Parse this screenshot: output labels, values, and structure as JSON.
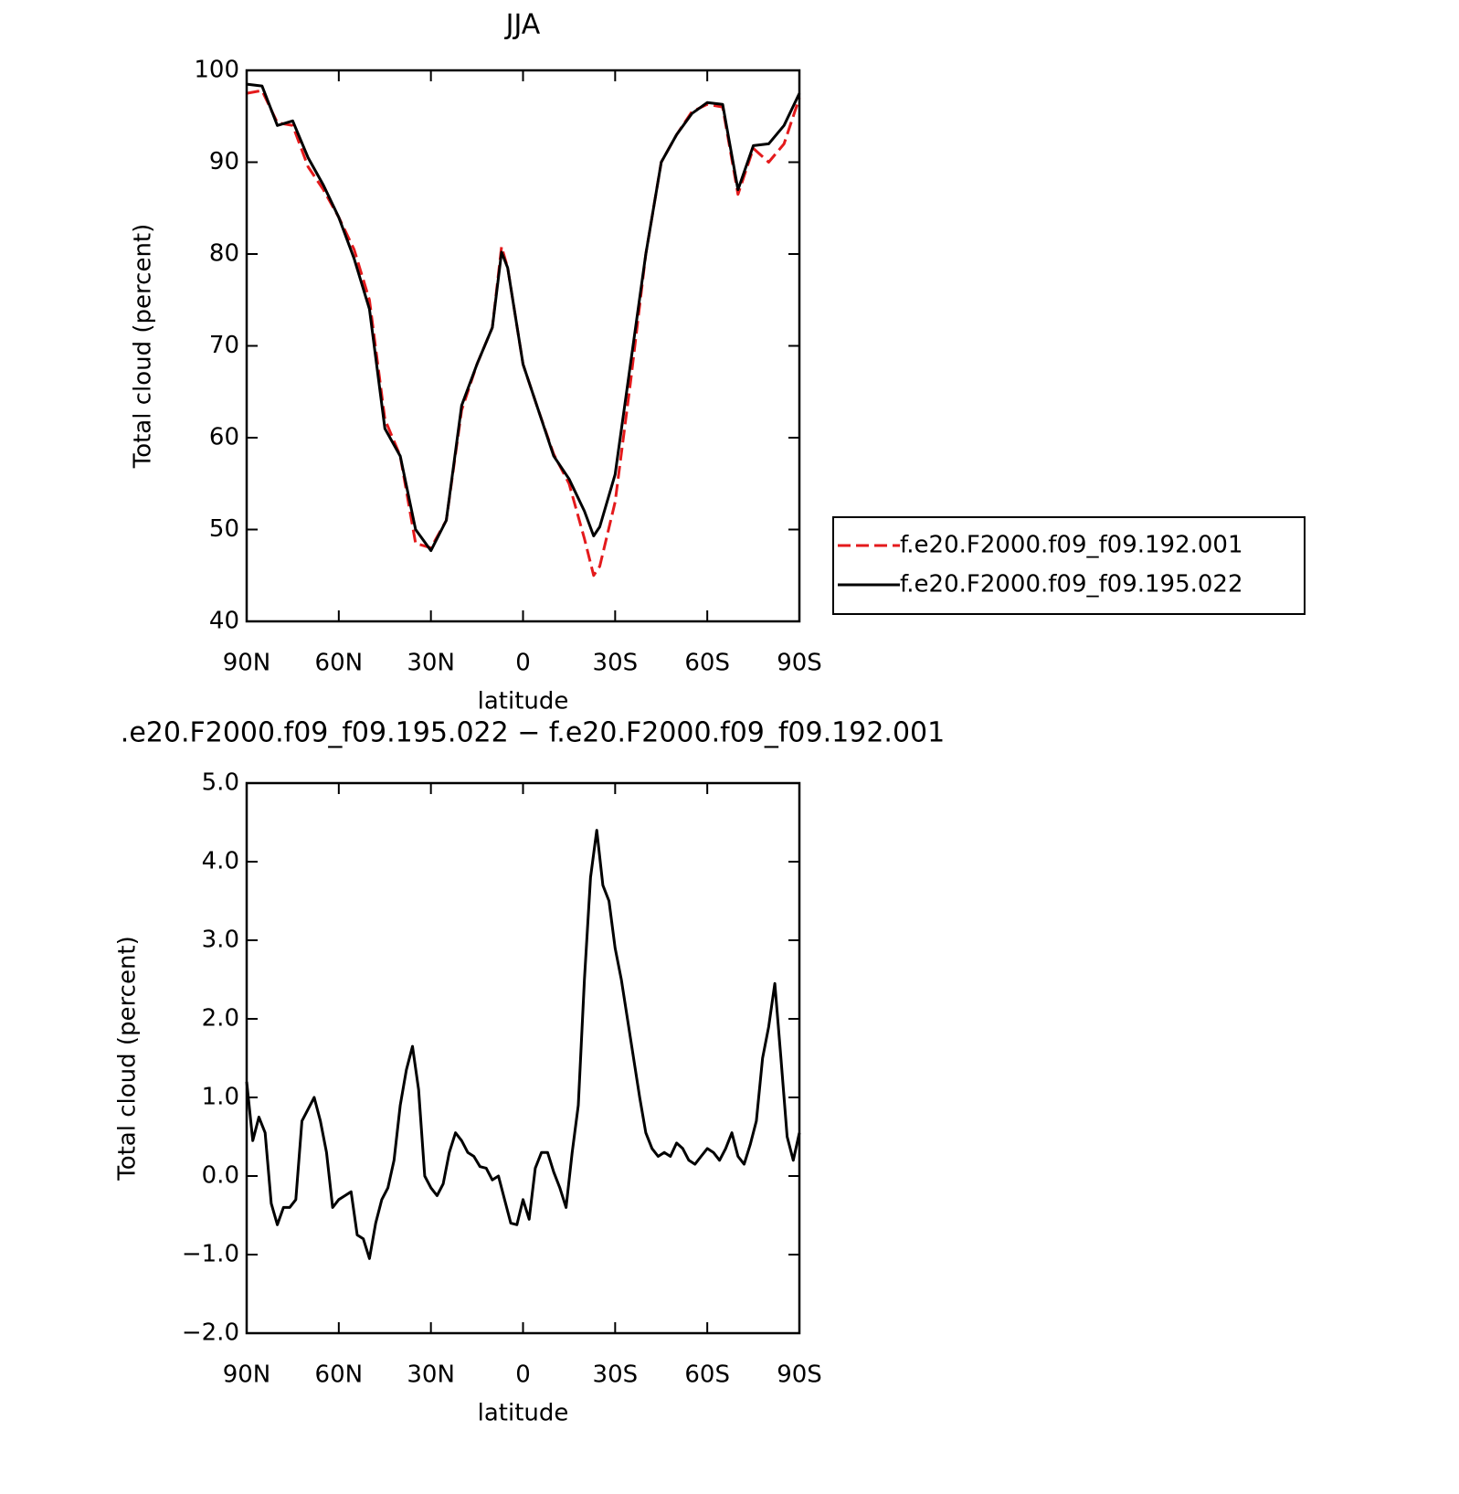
{
  "chart_data": [
    {
      "type": "line",
      "title": "JJA",
      "x_label": "latitude",
      "y_label": "Total cloud (percent)",
      "x": [
        90,
        85,
        80,
        75,
        70,
        65,
        60,
        55,
        50,
        45,
        40,
        35,
        30,
        25,
        20,
        15,
        10,
        7,
        5,
        0,
        -5,
        -10,
        -15,
        -20,
        -23,
        -25,
        -30,
        -35,
        -40,
        -45,
        -50,
        -55,
        -60,
        -65,
        -70,
        -75,
        -80,
        -85,
        -90
      ],
      "series": [
        {
          "name": "f.e20.F2000.f09_f09.192.001",
          "color": "#e41a1c",
          "line_style": "dashed",
          "values": [
            97.5,
            97.8,
            94.3,
            94,
            89.5,
            87,
            84,
            80.5,
            75,
            62,
            58,
            48.5,
            48,
            51,
            63,
            68,
            72,
            80.8,
            78.5,
            68,
            63,
            58.2,
            55,
            49,
            45,
            46,
            53,
            66,
            80,
            90,
            93,
            95.5,
            96.3,
            96,
            86.5,
            91.5,
            90,
            92,
            97
          ]
        },
        {
          "name": "f.e20.F2000.f09_f09.195.022",
          "color": "#000000",
          "line_style": "solid",
          "values": [
            98.5,
            98.3,
            94,
            94.5,
            90.5,
            87.5,
            84,
            79.5,
            74,
            61,
            58,
            50,
            47.7,
            51,
            63.5,
            68,
            72,
            80.2,
            78.5,
            68,
            63,
            58,
            55.5,
            52,
            49.3,
            50.3,
            56,
            68,
            80,
            90,
            93,
            95.3,
            96.5,
            96.3,
            87,
            91.8,
            92,
            94,
            97.5
          ]
        }
      ],
      "xlim": [
        90,
        -90
      ],
      "xticks": [
        {
          "value": 90,
          "label": "90N"
        },
        {
          "value": 60,
          "label": "60N"
        },
        {
          "value": 30,
          "label": "30N"
        },
        0,
        {
          "value": -30,
          "label": "30S"
        },
        {
          "value": -60,
          "label": "60S"
        },
        {
          "value": -90,
          "label": "90S"
        }
      ],
      "ylim": [
        40,
        100
      ],
      "yticks": [
        40,
        50,
        60,
        70,
        80,
        90,
        100
      ],
      "legend": "right"
    },
    {
      "type": "line",
      "title": ".e20.F2000.f09_f09.195.022 − f.e20.F2000.f09_f09.192.001",
      "x_label": "latitude",
      "y_label": "Total cloud (percent)",
      "x": [
        90,
        88,
        86,
        84,
        82,
        80,
        78,
        76,
        74,
        72,
        70,
        68,
        66,
        64,
        62,
        60,
        58,
        56,
        54,
        52,
        50,
        48,
        46,
        44,
        42,
        40,
        38,
        36,
        34,
        32,
        30,
        28,
        26,
        24,
        22,
        20,
        18,
        16,
        14,
        12,
        10,
        8,
        6,
        4,
        2,
        0,
        -2,
        -4,
        -6,
        -8,
        -10,
        -12,
        -14,
        -16,
        -18,
        -20,
        -22,
        -24,
        -26,
        -28,
        -30,
        -32,
        -34,
        -36,
        -38,
        -40,
        -42,
        -44,
        -46,
        -48,
        -50,
        -52,
        -54,
        -56,
        -58,
        -60,
        -62,
        -64,
        -66,
        -68,
        -70,
        -72,
        -74,
        -76,
        -78,
        -80,
        -82,
        -84,
        -86,
        -88,
        -90
      ],
      "series": [
        {
          "color": "#000000",
          "line_style": "solid",
          "values": [
            1.2,
            0.45,
            0.75,
            0.55,
            -0.35,
            -0.62,
            -0.4,
            -0.4,
            -0.3,
            0.7,
            0.85,
            1.0,
            0.7,
            0.3,
            -0.4,
            -0.3,
            -0.25,
            -0.2,
            -0.75,
            -0.8,
            -1.05,
            -0.6,
            -0.3,
            -0.15,
            0.2,
            0.9,
            1.35,
            1.65,
            1.1,
            0.0,
            -0.15,
            -0.25,
            -0.1,
            0.3,
            0.55,
            0.45,
            0.3,
            0.25,
            0.12,
            0.1,
            -0.05,
            0.0,
            -0.3,
            -0.6,
            -0.62,
            -0.3,
            -0.55,
            0.1,
            0.3,
            0.3,
            0.05,
            -0.15,
            -0.4,
            0.3,
            0.9,
            2.5,
            3.8,
            4.4,
            3.7,
            3.5,
            2.9,
            2.5,
            2.0,
            1.5,
            1.0,
            0.55,
            0.35,
            0.25,
            0.3,
            0.25,
            0.42,
            0.35,
            0.2,
            0.15,
            0.25,
            0.35,
            0.3,
            0.2,
            0.35,
            0.55,
            0.25,
            0.15,
            0.4,
            0.7,
            1.5,
            1.9,
            2.45,
            1.5,
            0.5,
            0.2,
            0.55
          ]
        }
      ],
      "xlim": [
        90,
        -90
      ],
      "xticks": [
        {
          "value": 90,
          "label": "90N"
        },
        {
          "value": 60,
          "label": "60N"
        },
        {
          "value": 30,
          "label": "30N"
        },
        0,
        {
          "value": -30,
          "label": "30S"
        },
        {
          "value": -60,
          "label": "60S"
        },
        {
          "value": -90,
          "label": "90S"
        }
      ],
      "ylim": [
        -2,
        5
      ],
      "yticks": [
        {
          "value": -2,
          "label": "−2.0"
        },
        {
          "value": -1,
          "label": "−1.0"
        },
        {
          "value": 0,
          "label": "0.0"
        },
        {
          "value": 1,
          "label": "1.0"
        },
        {
          "value": 2,
          "label": "2.0"
        },
        {
          "value": 3,
          "label": "3.0"
        },
        {
          "value": 4,
          "label": "4.0"
        },
        {
          "value": 5,
          "label": "5.0"
        }
      ]
    }
  ]
}
